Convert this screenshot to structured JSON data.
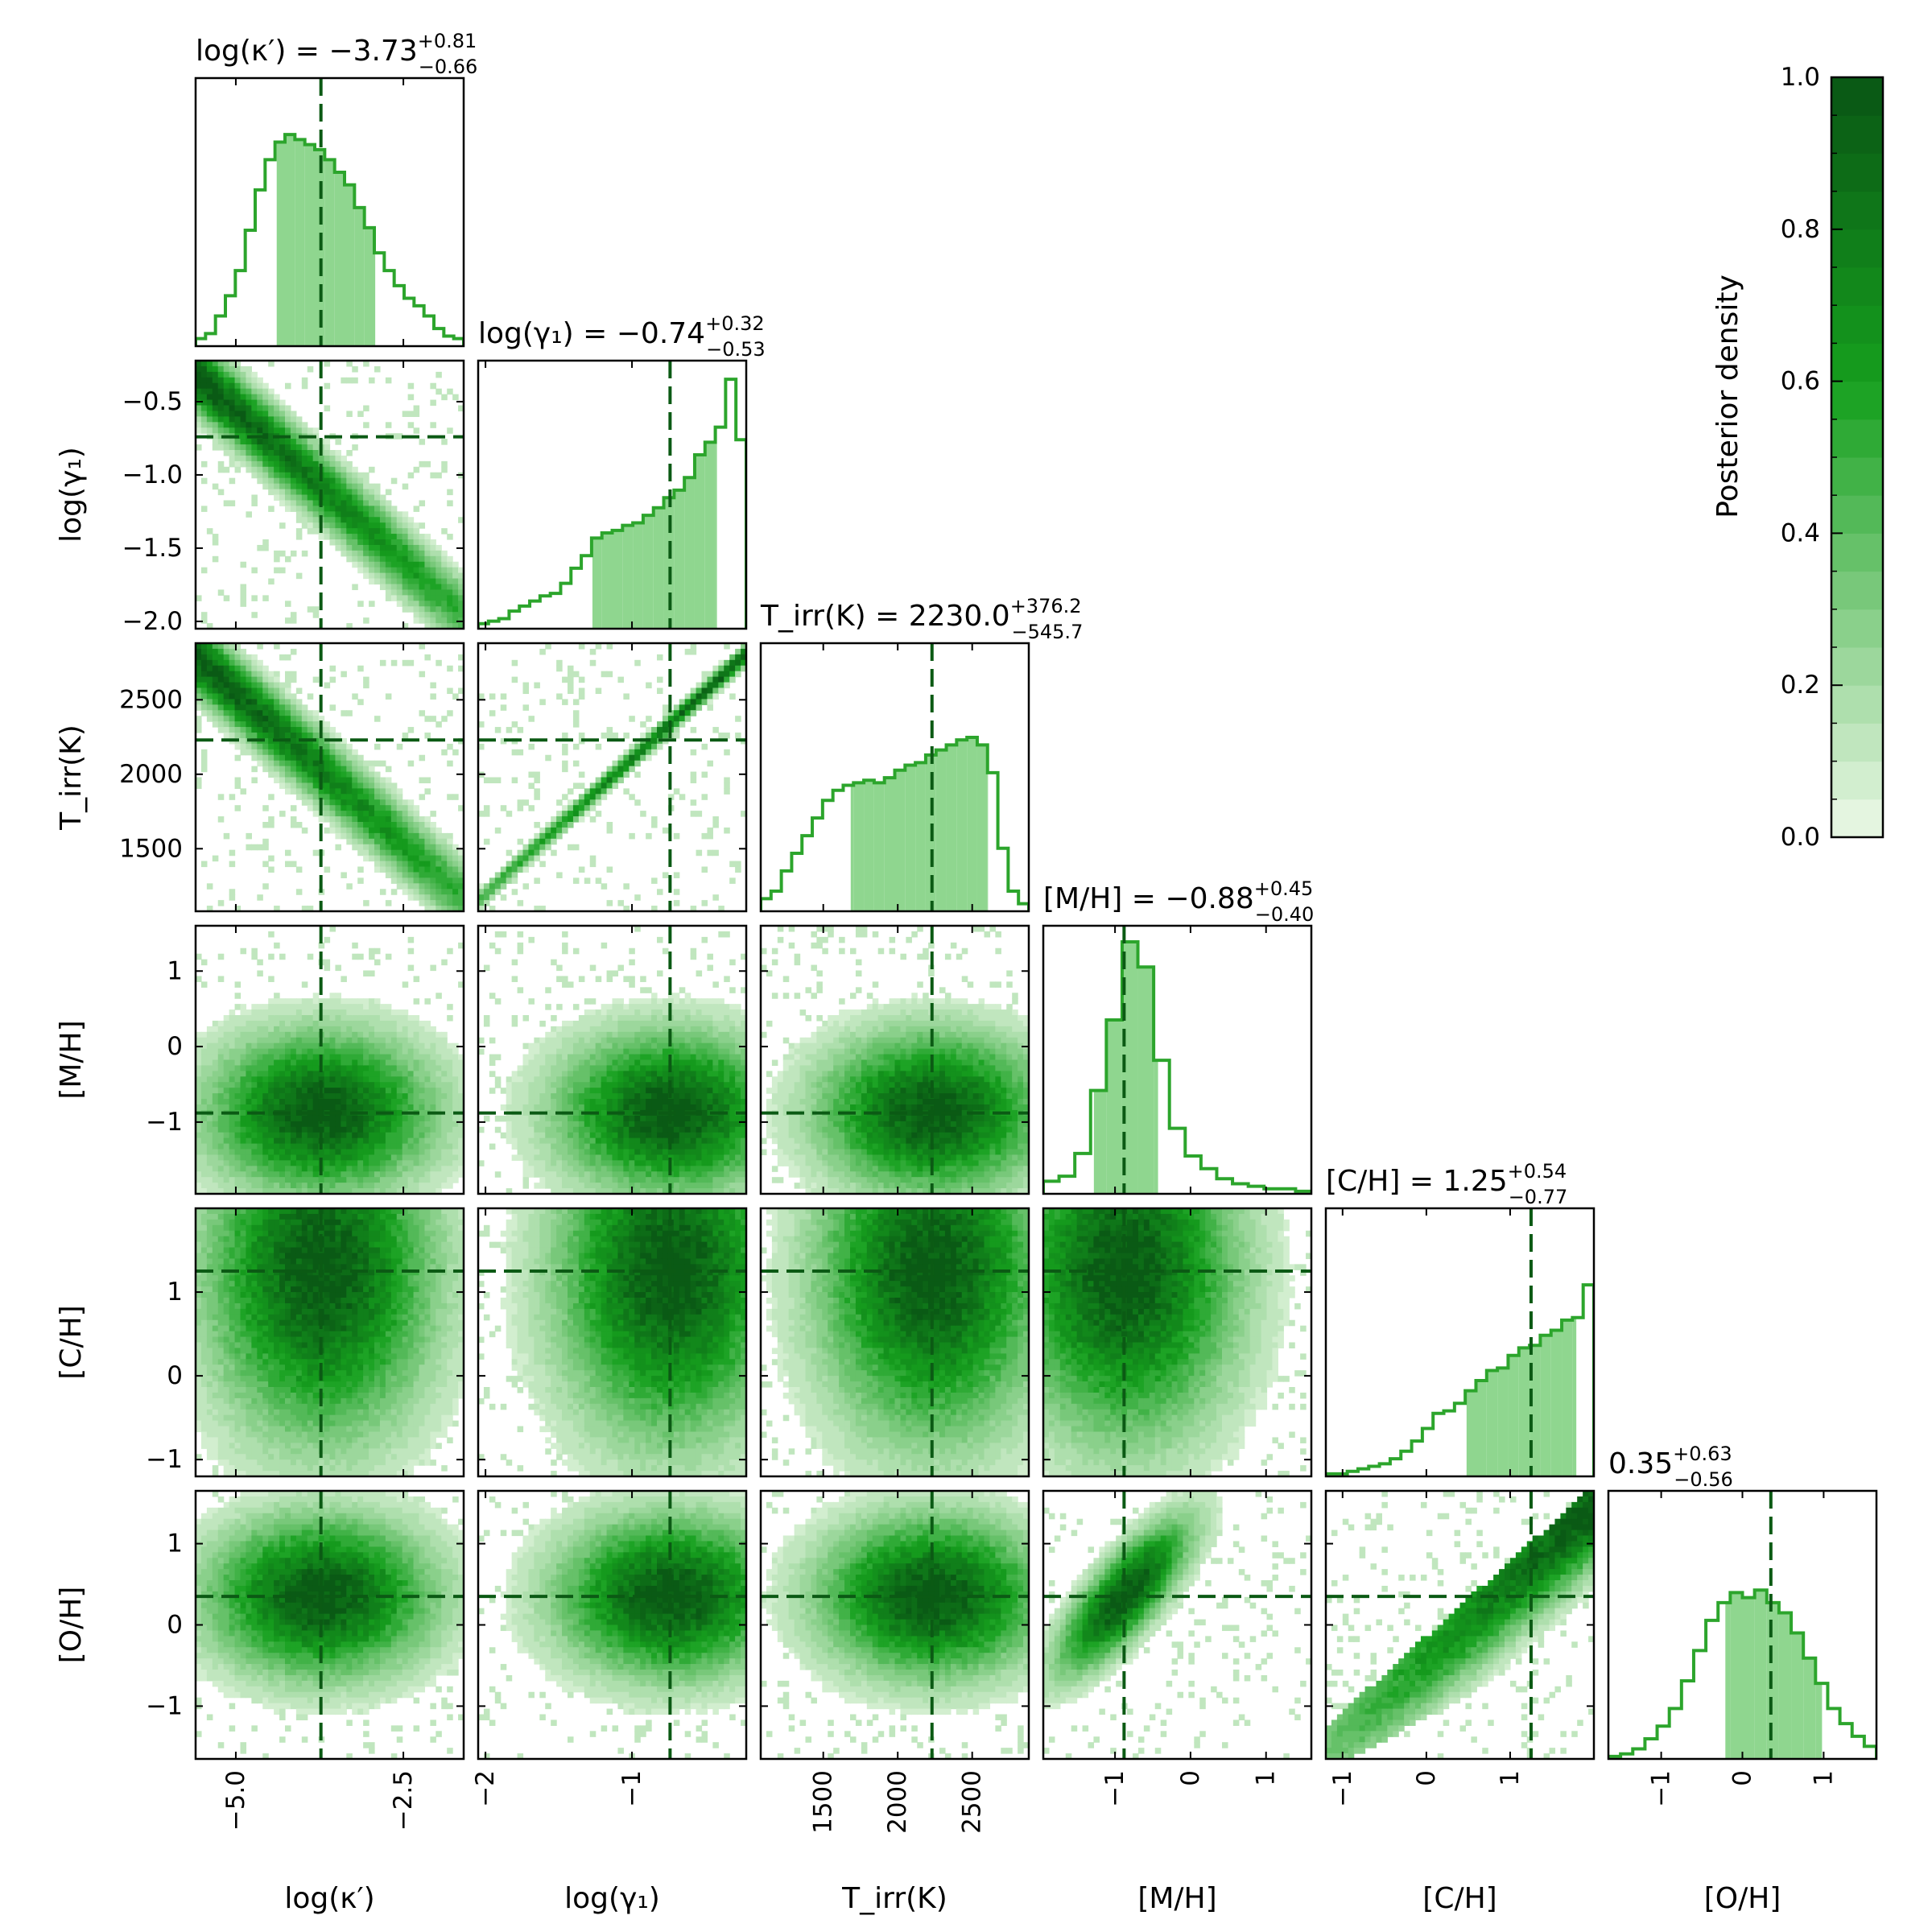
{
  "figure": {
    "colorbar": {
      "label": "Posterior density",
      "ticks": [
        "0.0",
        "0.2",
        "0.4",
        "0.6",
        "0.8",
        "1.0"
      ],
      "range": [
        0,
        1
      ],
      "n_levels": 20,
      "color_light": "#e4f5e0",
      "color_dark": "#0a5a15"
    },
    "colors": {
      "hist_line": "#2ca52c",
      "hist_fill": "#8fd68f",
      "marker_line": "#0b5a14",
      "frame": "#000000"
    }
  },
  "chart_data": {
    "type": "corner",
    "parameters": [
      {
        "key": "log_kappa",
        "title": "log(κ′) = −3.73",
        "title_sup": "+0.81",
        "title_sub": "−0.66",
        "axis_label": "log(κ′)",
        "median": -3.73,
        "range": [
          -5.6,
          -1.6
        ],
        "ticks": [
          -5.0,
          -2.5
        ],
        "tick_labels": [
          "−5.0",
          "−2.5"
        ],
        "ci": [
          -4.39,
          -2.92
        ]
      },
      {
        "key": "log_gamma1",
        "title": "log(γ₁) = −0.74",
        "title_sup": "+0.32",
        "title_sub": "−0.53",
        "axis_label": "log(γ₁)",
        "median": -0.74,
        "range": [
          -2.05,
          -0.22
        ],
        "ticks": [
          -2.0,
          -1.5,
          -1.0,
          -0.5
        ],
        "tick_labels": [
          "−2.0",
          "−1.5",
          "−1.0",
          "−0.5"
        ],
        "x_ticks": [
          -2,
          -1
        ],
        "x_tick_labels": [
          "−2",
          "−1"
        ],
        "ci": [
          -1.27,
          -0.42
        ]
      },
      {
        "key": "T_irr",
        "title": "T_irr(K) = 2230.0",
        "title_sup": "+376.2",
        "title_sub": "−545.7",
        "axis_label": "T_irr(K)",
        "median": 2230.0,
        "range": [
          1080,
          2880
        ],
        "ticks": [
          1500,
          2000,
          2500
        ],
        "tick_labels": [
          "1500",
          "2000",
          "2500"
        ],
        "ci": [
          1684.3,
          2606.2
        ]
      },
      {
        "key": "M_H",
        "title": "[M/H] = −0.88",
        "title_sup": "+0.45",
        "title_sub": "−0.40",
        "axis_label": "[M/H]",
        "median": -0.88,
        "range": [
          -1.95,
          1.6
        ],
        "ticks": [
          -1,
          0,
          1
        ],
        "tick_labels": [
          "−1",
          "0",
          "1"
        ],
        "ci": [
          -1.28,
          -0.43
        ]
      },
      {
        "key": "C_H",
        "title": "[C/H] = 1.25",
        "title_sup": "+0.54",
        "title_sub": "−0.77",
        "axis_label": "[C/H]",
        "median": 1.25,
        "range": [
          -1.2,
          2.0
        ],
        "ticks": [
          -1,
          0,
          1
        ],
        "tick_labels": [
          "−1",
          "0",
          "1"
        ],
        "ci": [
          0.48,
          1.79
        ]
      },
      {
        "key": "O_H",
        "title": "0.35",
        "title_sup": "+0.63",
        "title_sub": "−0.56",
        "axis_label": "[O/H]",
        "median": 0.35,
        "range": [
          -1.65,
          1.65
        ],
        "ticks": [
          -1,
          0,
          1
        ],
        "tick_labels": [
          "−1",
          "0",
          "1"
        ],
        "ci": [
          -0.21,
          0.98
        ]
      }
    ],
    "histograms": [
      [
        0.03,
        0.05,
        0.12,
        0.2,
        0.3,
        0.46,
        0.62,
        0.74,
        0.81,
        0.84,
        0.82,
        0.8,
        0.78,
        0.74,
        0.69,
        0.64,
        0.55,
        0.47,
        0.37,
        0.3,
        0.24,
        0.19,
        0.16,
        0.12,
        0.07,
        0.04,
        0.03
      ],
      [
        0.02,
        0.03,
        0.04,
        0.07,
        0.09,
        0.11,
        0.13,
        0.14,
        0.18,
        0.24,
        0.29,
        0.36,
        0.38,
        0.39,
        0.41,
        0.42,
        0.45,
        0.48,
        0.52,
        0.55,
        0.6,
        0.69,
        0.74,
        0.8,
        0.99,
        0.75
      ],
      [
        0.05,
        0.08,
        0.16,
        0.23,
        0.3,
        0.37,
        0.44,
        0.48,
        0.5,
        0.51,
        0.52,
        0.51,
        0.53,
        0.56,
        0.58,
        0.59,
        0.62,
        0.64,
        0.66,
        0.68,
        0.69,
        0.66,
        0.55,
        0.25,
        0.08,
        0.03
      ],
      [
        0.05,
        0.07,
        0.16,
        0.41,
        0.69,
        1.0,
        0.9,
        0.53,
        0.26,
        0.15,
        0.1,
        0.06,
        0.04,
        0.03,
        0.02,
        0.02,
        0.01
      ],
      [
        0.01,
        0.01,
        0.02,
        0.03,
        0.04,
        0.05,
        0.07,
        0.1,
        0.14,
        0.19,
        0.25,
        0.26,
        0.29,
        0.34,
        0.38,
        0.42,
        0.43,
        0.48,
        0.51,
        0.52,
        0.56,
        0.58,
        0.62,
        0.63,
        0.76
      ],
      [
        0.01,
        0.02,
        0.04,
        0.08,
        0.13,
        0.2,
        0.31,
        0.43,
        0.55,
        0.62,
        0.66,
        0.64,
        0.67,
        0.62,
        0.58,
        0.5,
        0.4,
        0.3,
        0.2,
        0.14,
        0.09,
        0.05
      ]
    ],
    "correlation_hints": {
      "log_gamma1|log_kappa": "negative",
      "T_irr|log_kappa": "negative",
      "T_irr|log_gamma1": "tight-positive",
      "O_H|C_H": "positive-wedge",
      "O_H|M_H": "positive"
    }
  }
}
